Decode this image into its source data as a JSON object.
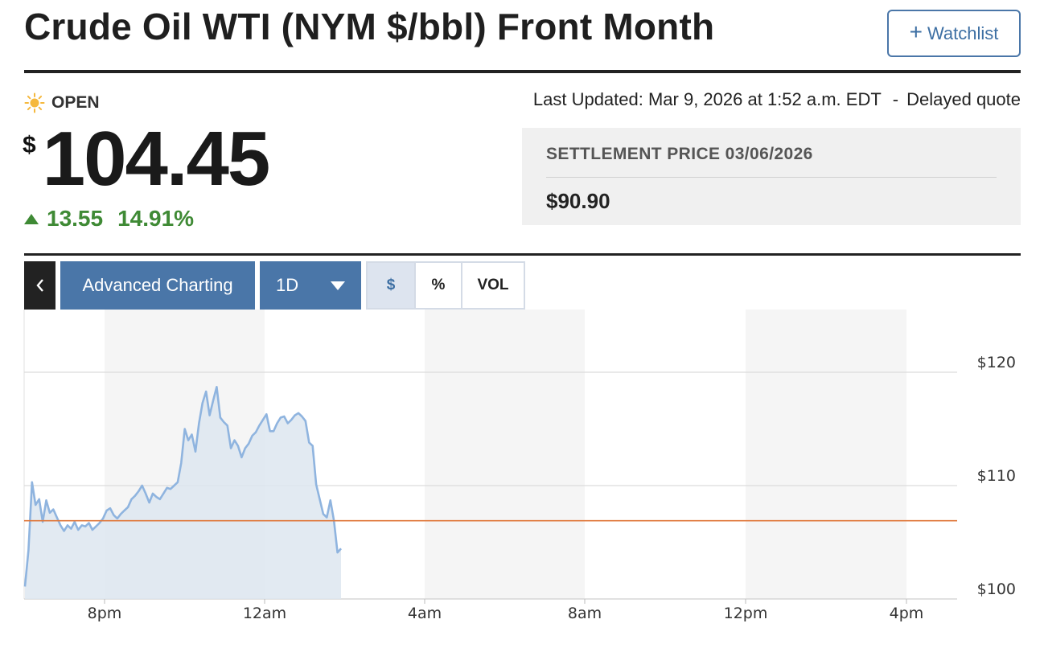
{
  "header": {
    "title": "Crude Oil WTI (NYM $/bbl) Front Month",
    "watchlist_label": "Watchlist",
    "watchlist_icon": "plus-icon"
  },
  "status": {
    "market_state": "OPEN",
    "icon": "sun-icon",
    "last_updated": "Last Updated: Mar 9, 2026 at 1:52 a.m. EDT",
    "separator": "-",
    "quote_type": "Delayed quote"
  },
  "quote": {
    "currency_symbol": "$",
    "price": "104.45",
    "change": "13.55",
    "change_percent": "14.91%",
    "direction": "up",
    "up_color": "#3f8a35"
  },
  "settlement": {
    "label": "SETTLEMENT PRICE 03/06/2026",
    "value": "$90.90"
  },
  "toolbar": {
    "back_icon": "chevron-left-icon",
    "advanced_charting_label": "Advanced Charting",
    "range_label": "1D",
    "range_icon": "caret-down-icon",
    "modes": [
      "$",
      "%",
      "VOL"
    ],
    "selected_mode": "$"
  },
  "colors": {
    "accent": "#4a76a8",
    "line": "#8fb4df",
    "area": "#dde6f0",
    "reference_line": "#e0773a"
  },
  "chart_data": {
    "type": "area",
    "x_tick_labels": [
      "8pm",
      "12am",
      "4am",
      "8am",
      "12pm",
      "4pm"
    ],
    "y_tick_labels": [
      "$120",
      "$110",
      "$100"
    ],
    "ylim": [
      100,
      120
    ],
    "reference_value": 106.9,
    "grid": true,
    "shaded_bands": true,
    "series": [
      {
        "values": [
          101.1,
          104.3,
          110.3,
          108.3,
          108.8,
          106.8,
          108.7,
          107.6,
          107.9,
          107.2,
          106.5,
          106.0,
          106.5,
          106.2,
          106.8,
          106.1,
          106.5,
          106.4,
          106.7,
          106.1,
          106.4,
          106.7,
          107.1,
          107.8,
          108.0,
          107.4,
          107.1,
          107.5,
          107.8,
          108.1,
          108.8,
          109.1,
          109.5,
          110.0,
          109.3,
          108.5,
          109.3,
          109.0,
          108.8,
          109.3,
          109.8,
          109.7,
          110.0,
          110.3,
          112.0,
          115.0,
          114.0,
          114.5,
          113.0,
          115.5,
          117.3,
          118.3,
          116.2,
          117.5,
          118.7,
          116.0,
          115.6,
          115.3,
          113.3,
          114.0,
          113.5,
          112.5,
          113.3,
          113.7,
          114.4,
          114.7,
          115.3,
          115.8,
          116.3,
          114.8,
          114.8,
          115.5,
          116.0,
          116.1,
          115.5,
          115.8,
          116.2,
          116.4,
          116.1,
          115.7,
          113.8,
          113.5,
          110.1,
          108.8,
          107.5,
          107.2,
          108.7,
          106.9,
          104.1,
          104.45
        ]
      }
    ]
  }
}
